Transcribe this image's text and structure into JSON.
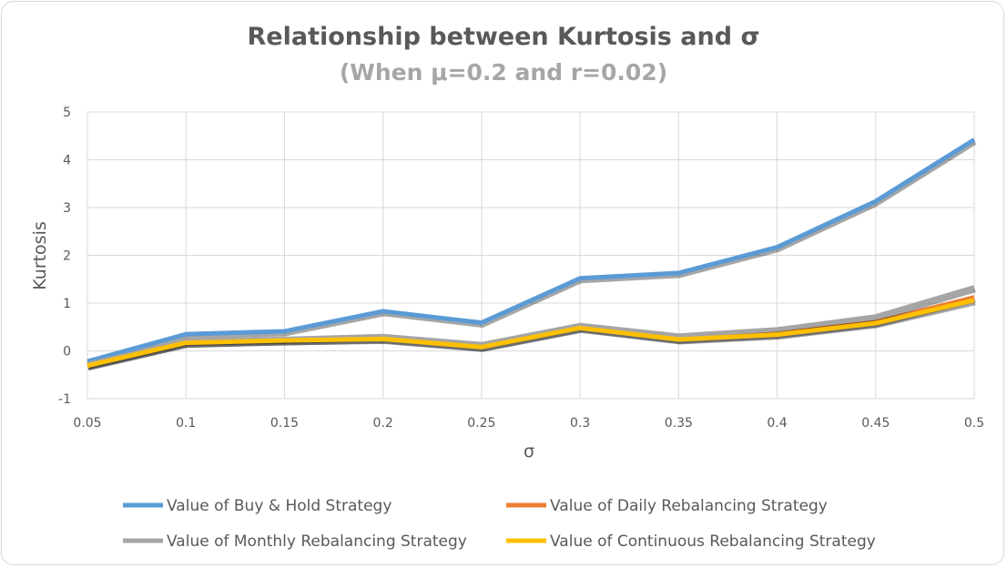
{
  "chart_data": {
    "type": "line",
    "title": "Relationship between Kurtosis and σ",
    "subtitle": "(When μ=0.2 and r=0.02)",
    "xlabel": "σ",
    "ylabel": "Kurtosis",
    "x": [
      "0.05",
      "0.1",
      "0.15",
      "0.2",
      "0.25",
      "0.3",
      "0.35",
      "0.4",
      "0.45",
      "0.5"
    ],
    "ylim": [
      -1,
      5
    ],
    "yticks": [
      "-1",
      "0",
      "1",
      "2",
      "3",
      "4",
      "5"
    ],
    "grid": true,
    "legend_position": "bottom",
    "series": [
      {
        "name": "Value of Buy & Hold Strategy",
        "color": "#5b9bd5",
        "values": [
          -0.22,
          0.35,
          0.41,
          0.83,
          0.59,
          1.52,
          1.63,
          2.17,
          3.13,
          4.42
        ]
      },
      {
        "name": "Value of Daily Rebalancing Strategy",
        "color": "#ed7d31",
        "values": [
          -0.3,
          0.17,
          0.22,
          0.26,
          0.09,
          0.49,
          0.25,
          0.36,
          0.6,
          1.12
        ]
      },
      {
        "name": "Value of Monthly Rebalancing Strategy",
        "color": "#a5a5a5",
        "values": [
          -0.28,
          0.21,
          0.25,
          0.31,
          0.14,
          0.54,
          0.32,
          0.45,
          0.72,
          1.33
        ]
      },
      {
        "name": "Value of Continuous Rebalancing Strategy",
        "color": "#ffc000",
        "values": [
          -0.31,
          0.17,
          0.22,
          0.25,
          0.08,
          0.48,
          0.24,
          0.34,
          0.58,
          1.06
        ]
      }
    ]
  }
}
